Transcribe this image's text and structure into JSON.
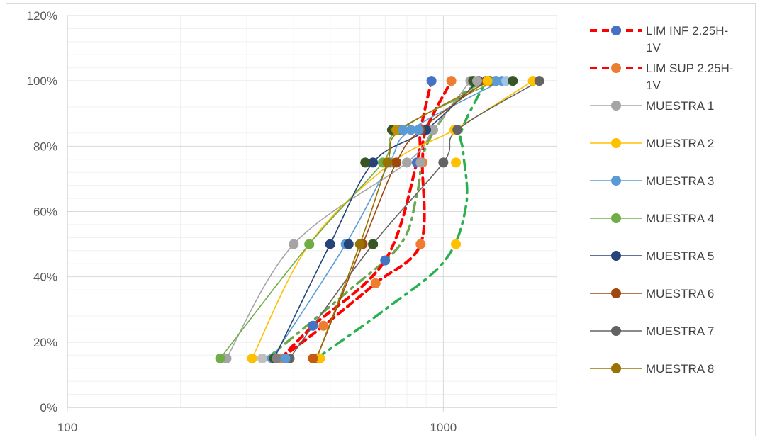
{
  "chart_data": {
    "type": "line",
    "x_scale": "log",
    "xlim": [
      100,
      2000
    ],
    "ylim": [
      0,
      1.2
    ],
    "x_ticks": [
      {
        "value": 100,
        "label": "100"
      },
      {
        "value": 1000,
        "label": "1000"
      }
    ],
    "y_ticks": [
      {
        "value": 0,
        "label": "0%"
      },
      {
        "value": 0.2,
        "label": "20%"
      },
      {
        "value": 0.4,
        "label": "40%"
      },
      {
        "value": 0.6,
        "label": "60%"
      },
      {
        "value": 0.8,
        "label": "80%"
      },
      {
        "value": 1.0,
        "label": "100%"
      },
      {
        "value": 1.2,
        "label": "120%"
      }
    ],
    "grid": true,
    "legend_position": "right",
    "series": [
      {
        "name": "LIM INF 2.25H-1V",
        "color": "#ff0000",
        "marker": "#4472c4",
        "dash": "dash",
        "points": [
          [
            370,
            0.15
          ],
          [
            450,
            0.25
          ],
          [
            700,
            0.45
          ],
          [
            850,
            0.75
          ],
          [
            870,
            0.85
          ],
          [
            930,
            1.0
          ]
        ]
      },
      {
        "name": "LIM SUP 2.25H-1V",
        "color": "#ff0000",
        "marker": "#ed7d31",
        "dash": "dash",
        "points": [
          [
            370,
            0.15
          ],
          [
            480,
            0.25
          ],
          [
            660,
            0.38
          ],
          [
            870,
            0.5
          ],
          [
            880,
            0.75
          ],
          [
            900,
            0.85
          ],
          [
            1050,
            1.0
          ]
        ]
      },
      {
        "name": "MUESTRA 1",
        "color": "#a5a5a5",
        "marker": "#a5a5a5",
        "dash": "solid",
        "points": [
          [
            265,
            0.15
          ],
          [
            400,
            0.5
          ],
          [
            800,
            0.75
          ],
          [
            940,
            0.85
          ],
          [
            1180,
            1.0
          ]
        ]
      },
      {
        "name": "MUESTRA 2",
        "color": "#ffc000",
        "marker": "#ffc000",
        "dash": "solid",
        "points": [
          [
            310,
            0.15
          ],
          [
            440,
            0.5
          ],
          [
            730,
            0.75
          ],
          [
            1070,
            0.85
          ],
          [
            1730,
            1.0
          ]
        ]
      },
      {
        "name": "MUESTRA 3",
        "color": "#5b9bd5",
        "marker": "#5b9bd5",
        "dash": "solid",
        "points": [
          [
            350,
            0.15
          ],
          [
            550,
            0.5
          ],
          [
            720,
            0.75
          ],
          [
            820,
            0.85
          ],
          [
            1430,
            1.0
          ]
        ]
      },
      {
        "name": "MUESTRA 4",
        "color": "#70ad47",
        "marker": "#70ad47",
        "dash": "solid",
        "points": [
          [
            255,
            0.15
          ],
          [
            440,
            0.5
          ],
          [
            690,
            0.75
          ],
          [
            760,
            0.85
          ],
          [
            1380,
            1.0
          ]
        ]
      },
      {
        "name": "MUESTRA 5",
        "color": "#264478",
        "marker": "#264478",
        "dash": "solid",
        "points": [
          [
            355,
            0.15
          ],
          [
            500,
            0.5
          ],
          [
            650,
            0.75
          ],
          [
            900,
            0.85
          ],
          [
            1240,
            1.0
          ]
        ]
      },
      {
        "name": "MUESTRA 6",
        "color": "#9e480e",
        "marker": "#9e480e",
        "dash": "solid",
        "points": [
          [
            460,
            0.15
          ],
          [
            610,
            0.5
          ],
          [
            750,
            0.75
          ],
          [
            870,
            0.85
          ],
          [
            1300,
            1.0
          ]
        ]
      },
      {
        "name": "MUESTRA 7",
        "color": "#636363",
        "marker": "#636363",
        "dash": "solid",
        "points": [
          [
            390,
            0.15
          ],
          [
            650,
            0.5
          ],
          [
            1000,
            0.75
          ],
          [
            1090,
            0.85
          ],
          [
            1800,
            1.0
          ]
        ]
      },
      {
        "name": "MUESTRA 8",
        "color": "#997300",
        "marker": "#997300",
        "dash": "solid",
        "points": [
          [
            460,
            0.15
          ],
          [
            600,
            0.5
          ],
          [
            710,
            0.75
          ],
          [
            770,
            0.85
          ],
          [
            1330,
            1.0
          ]
        ]
      }
    ],
    "extra_series": [
      {
        "color": "#6aa84f",
        "dash": "dashdot",
        "points": [
          [
            340,
            0.15
          ],
          [
            550,
            0.35
          ],
          [
            770,
            0.5
          ],
          [
            850,
            0.65
          ],
          [
            900,
            0.8
          ],
          [
            1100,
            0.95
          ],
          [
            1310,
            1.0
          ]
        ]
      },
      {
        "color": "#2ab04f",
        "dash": "dashdot",
        "points": [
          [
            460,
            0.15
          ],
          [
            700,
            0.3
          ],
          [
            1010,
            0.45
          ],
          [
            1150,
            0.62
          ],
          [
            1130,
            0.78
          ],
          [
            1120,
            0.85
          ],
          [
            1300,
            1.0
          ]
        ]
      }
    ],
    "extra_markers": [
      {
        "x": 330,
        "y": 0.15,
        "color": "#bfbfbf"
      },
      {
        "x": 355,
        "y": 0.15,
        "color": "#375623"
      },
      {
        "x": 360,
        "y": 0.15,
        "color": "#7f7f7f"
      },
      {
        "x": 380,
        "y": 0.15,
        "color": "#5b9bd5"
      },
      {
        "x": 470,
        "y": 0.15,
        "color": "#ffc000"
      },
      {
        "x": 450,
        "y": 0.15,
        "color": "#c55a11"
      },
      {
        "x": 620,
        "y": 0.75,
        "color": "#375623"
      },
      {
        "x": 730,
        "y": 0.85,
        "color": "#375623"
      },
      {
        "x": 750,
        "y": 0.85,
        "color": "#bf8f00"
      },
      {
        "x": 860,
        "y": 0.85,
        "color": "#5b9bd5"
      },
      {
        "x": 780,
        "y": 0.85,
        "color": "#5b9bd5"
      },
      {
        "x": 650,
        "y": 0.5,
        "color": "#375623"
      },
      {
        "x": 560,
        "y": 0.5,
        "color": "#264478"
      },
      {
        "x": 870,
        "y": 0.75,
        "color": "#a5a5a5"
      },
      {
        "x": 1080,
        "y": 0.5,
        "color": "#ffc000"
      },
      {
        "x": 1080,
        "y": 0.75,
        "color": "#ffc000"
      },
      {
        "x": 1200,
        "y": 1.0,
        "color": "#375623"
      },
      {
        "x": 1470,
        "y": 1.0,
        "color": "#9dc3e6"
      },
      {
        "x": 1380,
        "y": 1.0,
        "color": "#5b9bd5"
      },
      {
        "x": 1530,
        "y": 1.0,
        "color": "#375623"
      },
      {
        "x": 1310,
        "y": 1.0,
        "color": "#ffc000"
      },
      {
        "x": 1230,
        "y": 1.0,
        "color": "#a5a5a5"
      }
    ],
    "legend": [
      {
        "label": "LIM INF 2.25H-",
        "label2": "1V"
      },
      {
        "label": "LIM SUP 2.25H-",
        "label2": "1V"
      },
      {
        "label": "MUESTRA 1"
      },
      {
        "label": "MUESTRA 2"
      },
      {
        "label": "MUESTRA 3"
      },
      {
        "label": "MUESTRA 4"
      },
      {
        "label": "MUESTRA 5"
      },
      {
        "label": "MUESTRA 6"
      },
      {
        "label": "MUESTRA 7"
      },
      {
        "label": "MUESTRA 8"
      }
    ]
  }
}
